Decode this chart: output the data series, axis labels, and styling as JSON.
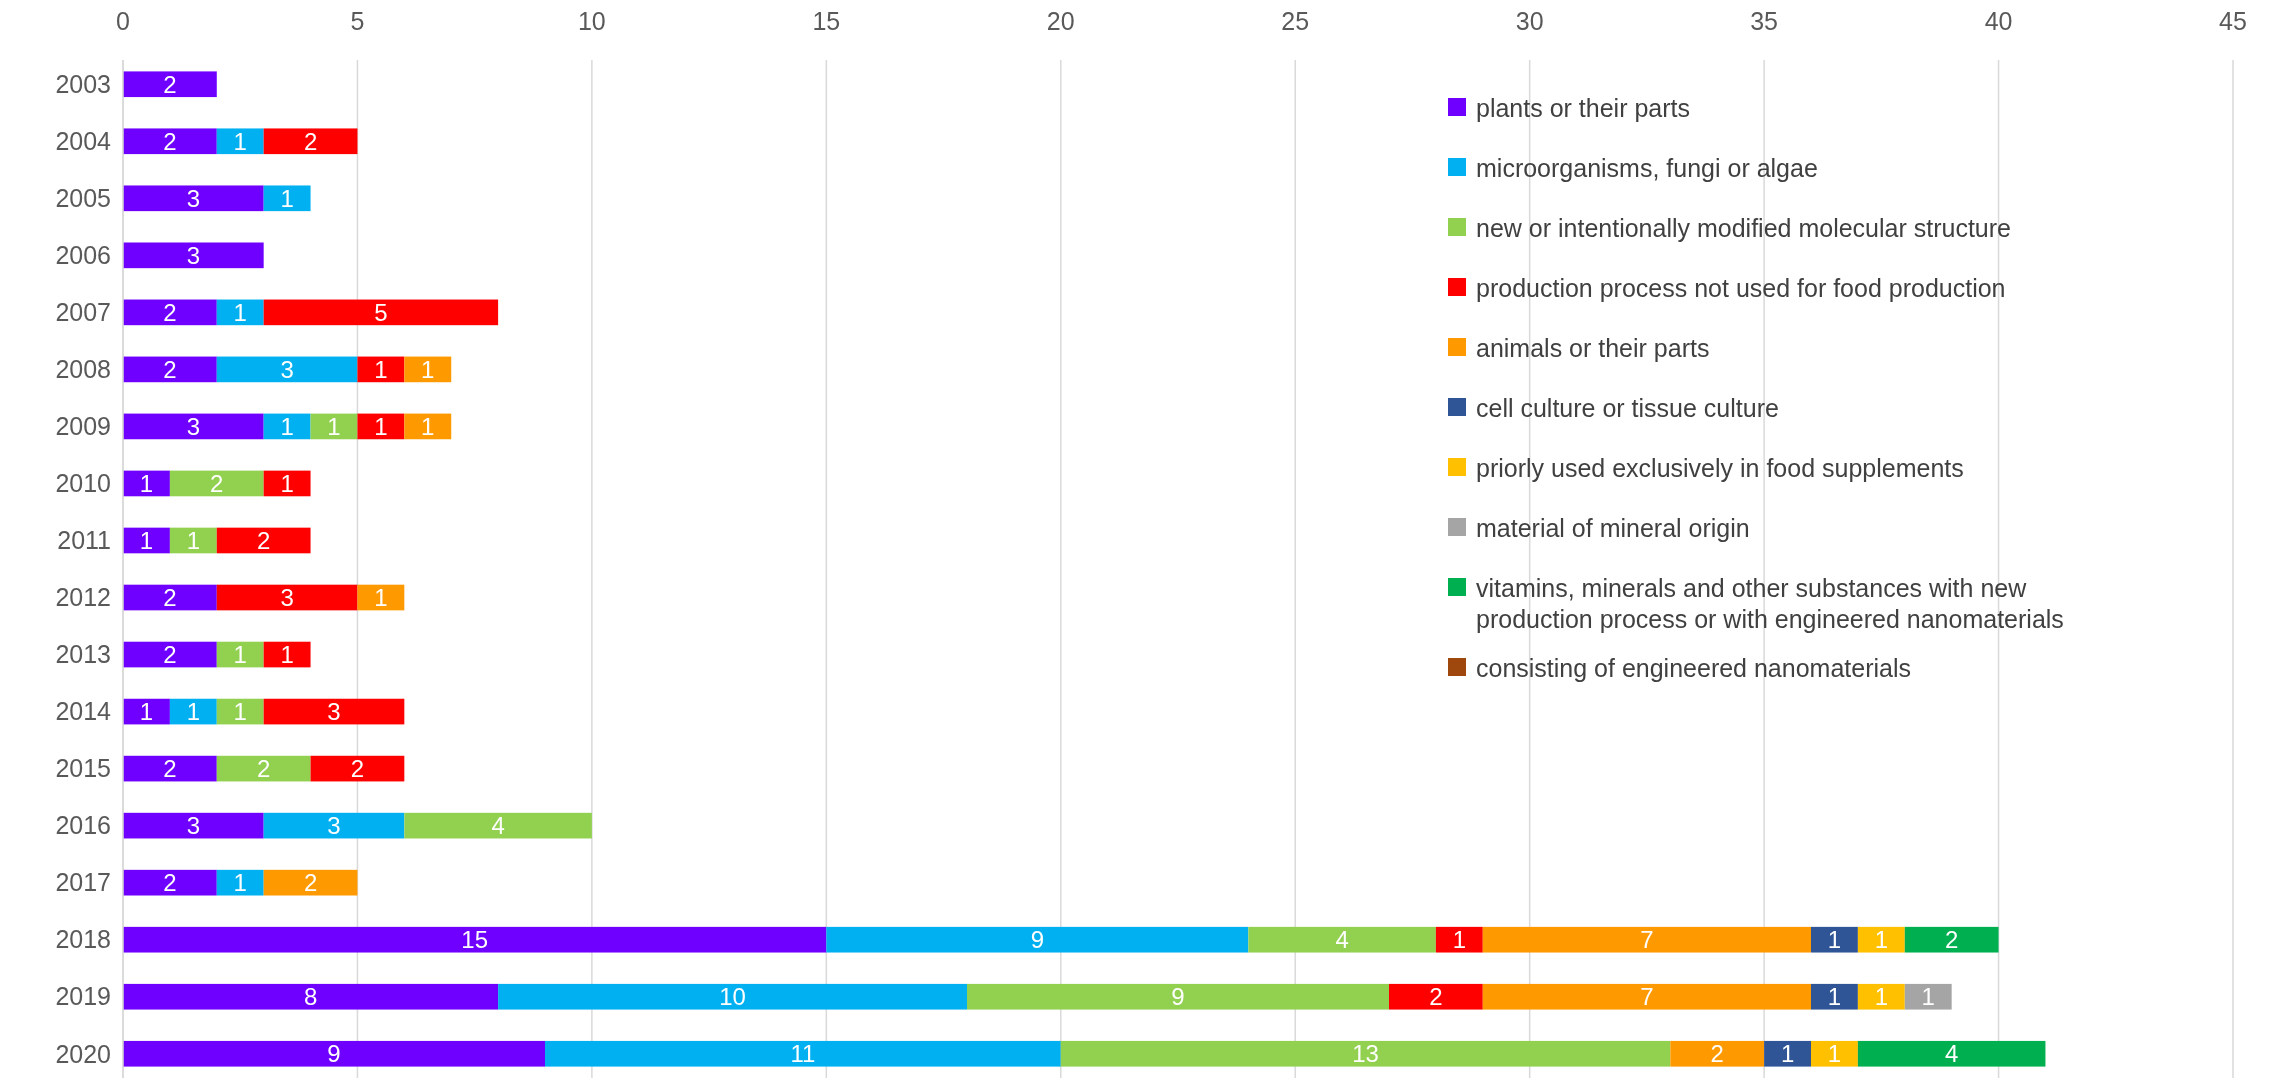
{
  "chart_data": {
    "type": "bar",
    "orientation": "horizontal",
    "stacked": true,
    "data_labels": true,
    "grid": "x",
    "legend": "top right",
    "categories": [
      "2003",
      "2004",
      "2005",
      "2006",
      "2007",
      "2008",
      "2009",
      "2010",
      "2011",
      "2012",
      "2013",
      "2014",
      "2015",
      "2016",
      "2017",
      "2018",
      "2019",
      "2020"
    ],
    "xlim": [
      0,
      45
    ],
    "xticks": [
      0,
      5,
      10,
      15,
      20,
      25,
      30,
      35,
      40,
      45
    ],
    "series": [
      {
        "name": "plants or their parts",
        "color": "#6f00ff",
        "values": [
          2,
          2,
          3,
          3,
          2,
          2,
          3,
          1,
          1,
          2,
          2,
          1,
          2,
          3,
          2,
          15,
          8,
          9
        ]
      },
      {
        "name": "microorganisms, fungi or algae",
        "color": "#00b0f0",
        "values": [
          null,
          1,
          1,
          null,
          1,
          3,
          1,
          null,
          null,
          null,
          null,
          1,
          null,
          3,
          1,
          9,
          10,
          11
        ]
      },
      {
        "name": "new or intentionally modified molecular structure",
        "color": "#92d050",
        "values": [
          null,
          null,
          null,
          null,
          null,
          null,
          1,
          2,
          1,
          null,
          1,
          1,
          2,
          4,
          null,
          4,
          9,
          13
        ]
      },
      {
        "name": "production process not used for food production",
        "color": "#ff0000",
        "values": [
          null,
          2,
          null,
          null,
          5,
          1,
          1,
          1,
          2,
          3,
          1,
          3,
          2,
          null,
          null,
          1,
          2,
          null
        ]
      },
      {
        "name": "animals or their parts",
        "color": "#ff9900",
        "values": [
          null,
          null,
          null,
          null,
          null,
          1,
          1,
          null,
          null,
          1,
          null,
          null,
          null,
          null,
          2,
          7,
          7,
          2
        ]
      },
      {
        "name": "cell culture or tissue culture",
        "color": "#2f5597",
        "values": [
          null,
          null,
          null,
          null,
          null,
          null,
          null,
          null,
          null,
          null,
          null,
          null,
          null,
          null,
          null,
          1,
          1,
          1
        ]
      },
      {
        "name": "priorly used exclusively in food supplements",
        "color": "#ffc000",
        "values": [
          null,
          null,
          null,
          null,
          null,
          null,
          null,
          null,
          null,
          null,
          null,
          null,
          null,
          null,
          null,
          1,
          1,
          1
        ]
      },
      {
        "name": "material of mineral origin",
        "color": "#a5a5a5",
        "values": [
          null,
          null,
          null,
          null,
          null,
          null,
          null,
          null,
          null,
          null,
          null,
          null,
          null,
          null,
          null,
          null,
          1,
          null
        ]
      },
      {
        "name": "vitamins, minerals and other substances with new production process or with engineered nanomaterials",
        "color": "#00b050",
        "values": [
          null,
          null,
          null,
          null,
          null,
          null,
          null,
          null,
          null,
          null,
          null,
          null,
          null,
          null,
          null,
          2,
          null,
          4
        ]
      },
      {
        "name": "consisting of engineered nanomaterials",
        "color": "#9e480e",
        "values": [
          null,
          null,
          null,
          null,
          null,
          null,
          null,
          null,
          null,
          null,
          null,
          null,
          null,
          null,
          null,
          null,
          null,
          null
        ]
      }
    ]
  }
}
